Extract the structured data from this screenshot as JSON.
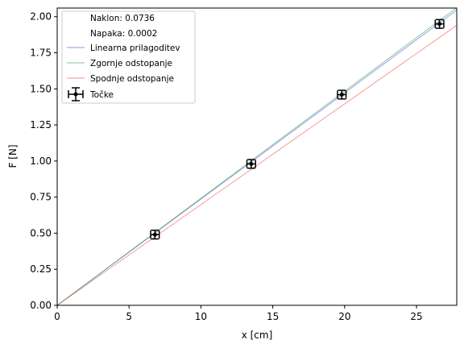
{
  "chart_data": {
    "type": "scatter",
    "xlabel": "x [cm]",
    "ylabel": "F [N]",
    "xlim": [
      0,
      27.8
    ],
    "ylim": [
      0,
      2.06
    ],
    "x_ticks": [
      0,
      5,
      10,
      15,
      20,
      25
    ],
    "x_tick_labels": [
      "0",
      "5",
      "10",
      "15",
      "20",
      "25"
    ],
    "y_ticks": [
      0,
      0.25,
      0.5,
      0.75,
      1.0,
      1.25,
      1.5,
      1.75,
      2.0
    ],
    "y_tick_labels": [
      "0.00",
      "0.25",
      "0.50",
      "0.75",
      "1.00",
      "1.25",
      "1.50",
      "1.75",
      "2.00"
    ],
    "grid": false,
    "legend_position": "top-left",
    "annotations": [
      "Naklon: 0.0736",
      "Napaka: 0.0002"
    ],
    "points": {
      "name": "Točke",
      "color": "#000000",
      "x": [
        6.8,
        13.5,
        19.8,
        26.6
      ],
      "y": [
        0.49,
        0.98,
        1.46,
        1.95
      ],
      "x_err": 0.3,
      "y_err": 0.03
    },
    "lines": [
      {
        "name": "Linearna prilagoditev",
        "color": "#4444ee",
        "slope": 0.0736
      },
      {
        "name": "Zgornje odstopanje",
        "color": "#2ca02c",
        "slope": 0.0742
      },
      {
        "name": "Spodnje odstopanje",
        "color": "#ee4444",
        "slope": 0.0698
      }
    ]
  }
}
